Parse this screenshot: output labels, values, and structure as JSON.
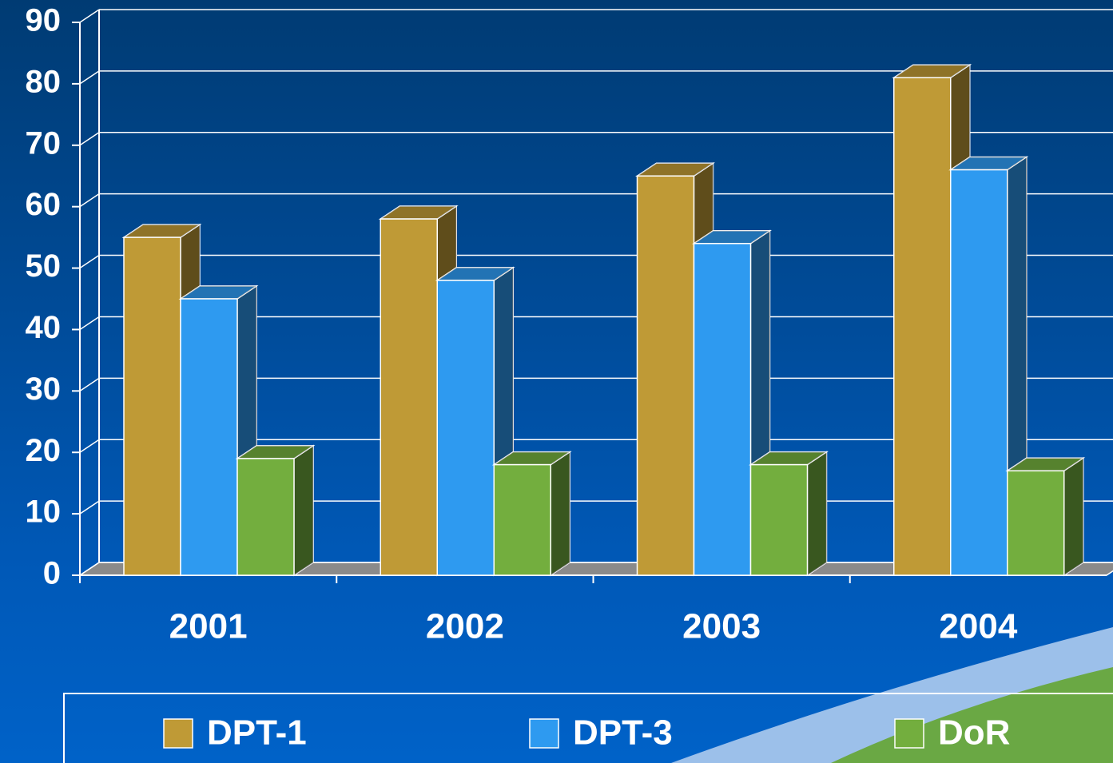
{
  "chart_data": {
    "type": "bar3d",
    "categories": [
      "2001",
      "2002",
      "2003",
      "2004"
    ],
    "series": [
      {
        "name": "DPT-1",
        "color": "#bf9a36",
        "values": [
          55,
          58,
          65,
          81
        ]
      },
      {
        "name": "DPT-3",
        "color": "#2e9af0",
        "values": [
          45,
          48,
          54,
          66
        ]
      },
      {
        "name": "DoR",
        "color": "#73ae3e",
        "values": [
          19,
          18,
          18,
          17
        ]
      }
    ],
    "ylim": [
      0,
      90
    ],
    "yticks": [
      0,
      10,
      20,
      30,
      40,
      50,
      60,
      70,
      80,
      90
    ],
    "grid": true,
    "legend": "bottom"
  }
}
